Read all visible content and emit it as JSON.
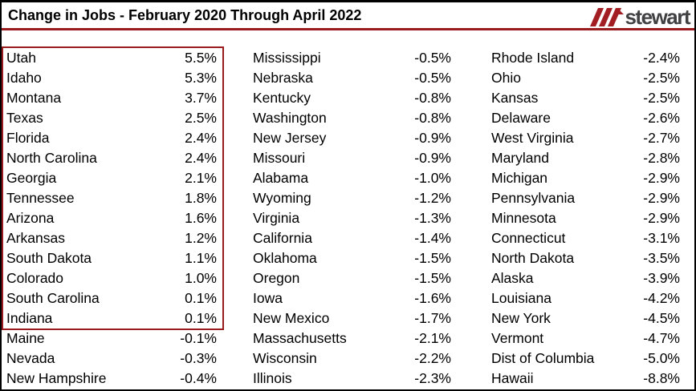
{
  "colors": {
    "accent_red": "#9a1b1e",
    "logo_stripe_red": "#a21e23",
    "logo_text": "#414042",
    "text": "#000000",
    "frame_border": "#000000",
    "background": "#ffffff"
  },
  "header": {
    "title": "Change in Jobs - February 2020 Through April 2022",
    "logo": {
      "wordmark": "stewart"
    }
  },
  "chart_data": {
    "type": "table",
    "title": "Change in Jobs - February 2020 Through April 2022",
    "value_format": "percent change",
    "columns": [
      [
        {
          "state": "Utah",
          "value": "5.5%"
        },
        {
          "state": "Idaho",
          "value": "5.3%"
        },
        {
          "state": "Montana",
          "value": "3.7%"
        },
        {
          "state": "Texas",
          "value": "2.5%"
        },
        {
          "state": "Florida",
          "value": "2.4%"
        },
        {
          "state": "North Carolina",
          "value": "2.4%"
        },
        {
          "state": "Georgia",
          "value": "2.1%"
        },
        {
          "state": "Tennessee",
          "value": "1.8%"
        },
        {
          "state": "Arizona",
          "value": "1.6%"
        },
        {
          "state": "Arkansas",
          "value": "1.2%"
        },
        {
          "state": "South Dakota",
          "value": "1.1%"
        },
        {
          "state": "Colorado",
          "value": "1.0%"
        },
        {
          "state": "South Carolina",
          "value": "0.1%"
        },
        {
          "state": "Indiana",
          "value": "0.1%"
        },
        {
          "state": "Maine",
          "value": "-0.1%"
        },
        {
          "state": "Nevada",
          "value": "-0.3%"
        },
        {
          "state": "New Hampshire",
          "value": "-0.4%"
        }
      ],
      [
        {
          "state": "Mississippi",
          "value": "-0.5%"
        },
        {
          "state": "Nebraska",
          "value": "-0.5%"
        },
        {
          "state": "Kentucky",
          "value": "-0.8%"
        },
        {
          "state": "Washington",
          "value": "-0.8%"
        },
        {
          "state": "New Jersey",
          "value": "-0.9%"
        },
        {
          "state": "Missouri",
          "value": "-0.9%"
        },
        {
          "state": "Alabama",
          "value": "-1.0%"
        },
        {
          "state": "Wyoming",
          "value": "-1.2%"
        },
        {
          "state": "Virginia",
          "value": "-1.3%"
        },
        {
          "state": "California",
          "value": "-1.4%"
        },
        {
          "state": "Oklahoma",
          "value": "-1.5%"
        },
        {
          "state": "Oregon",
          "value": "-1.5%"
        },
        {
          "state": "Iowa",
          "value": "-1.6%"
        },
        {
          "state": "New Mexico",
          "value": "-1.7%"
        },
        {
          "state": "Massachusetts",
          "value": "-2.1%"
        },
        {
          "state": "Wisconsin",
          "value": "-2.2%"
        },
        {
          "state": "Illinois",
          "value": "-2.3%"
        }
      ],
      [
        {
          "state": "Rhode Island",
          "value": "-2.4%"
        },
        {
          "state": "Ohio",
          "value": "-2.5%"
        },
        {
          "state": "Kansas",
          "value": "-2.5%"
        },
        {
          "state": "Delaware",
          "value": "-2.6%"
        },
        {
          "state": "West Virginia",
          "value": "-2.7%"
        },
        {
          "state": "Maryland",
          "value": "-2.8%"
        },
        {
          "state": "Michigan",
          "value": "-2.9%"
        },
        {
          "state": "Pennsylvania",
          "value": "-2.9%"
        },
        {
          "state": "Minnesota",
          "value": "-2.9%"
        },
        {
          "state": "Connecticut",
          "value": "-3.1%"
        },
        {
          "state": "North Dakota",
          "value": "-3.5%"
        },
        {
          "state": "Alaska",
          "value": "-3.9%"
        },
        {
          "state": "Louisiana",
          "value": "-4.2%"
        },
        {
          "state": "New York",
          "value": "-4.5%"
        },
        {
          "state": "Vermont",
          "value": "-4.7%"
        },
        {
          "state": "Dist of Columbia",
          "value": "-5.0%"
        },
        {
          "state": "Hawaii",
          "value": "-8.8%"
        }
      ]
    ],
    "highlight_box": {
      "column": 0,
      "first_row_index": 0,
      "last_row_index": 13
    }
  }
}
